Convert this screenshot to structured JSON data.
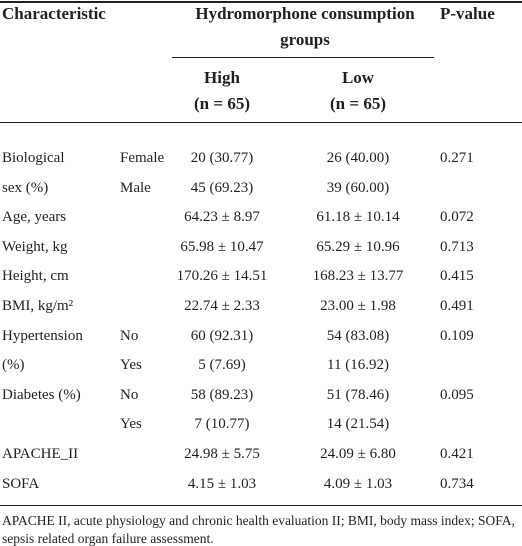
{
  "header": {
    "characteristic": "Characteristic",
    "group_title_line1": "Hydromorphone consumption",
    "group_title_line2": "groups",
    "p_value": "P-value",
    "high": "High",
    "high_n": "(n = 65)",
    "low": "Low",
    "low_n": "(n = 65)"
  },
  "table": {
    "rows": [
      {
        "label": "Biological",
        "level": "Female",
        "high": "20 (30.77)",
        "low": "26 (40.00)",
        "p": "0.271"
      },
      {
        "label": "sex (%)",
        "level": "Male",
        "high": "45 (69.23)",
        "low": "39 (60.00)"
      },
      {
        "label": "Age, years",
        "high": "64.23 ± 8.97",
        "low": "61.18 ± 10.14",
        "p": "0.072"
      },
      {
        "label": "Weight, kg",
        "high": "65.98 ± 10.47",
        "low": "65.29 ± 10.96",
        "p": "0.713"
      },
      {
        "label": "Height, cm",
        "high": "170.26 ± 14.51",
        "low": "168.23 ± 13.77",
        "p": "0.415"
      },
      {
        "label": "BMI, kg/m²",
        "high": "22.74 ± 2.33",
        "low": "23.00 ± 1.98",
        "p": "0.491"
      },
      {
        "label": "Hypertension",
        "level": "No",
        "high": "60 (92.31)",
        "low": "54 (83.08)",
        "p": "0.109"
      },
      {
        "label": "(%)",
        "level": "Yes",
        "high": "5 (7.69)",
        "low": "11 (16.92)"
      },
      {
        "label": "Diabetes (%)",
        "level": "No",
        "high": "58 (89.23)",
        "low": "51 (78.46)",
        "p": "0.095"
      },
      {
        "level": "Yes",
        "high": "7 (10.77)",
        "low": "14 (21.54)"
      },
      {
        "label": "APACHE_II",
        "high": "24.98 ± 5.75",
        "low": "24.09 ± 6.80",
        "p": "0.421"
      },
      {
        "label": "SOFA",
        "high": "4.15 ± 1.03",
        "low": "4.09 ± 1.03",
        "p": "0.734"
      }
    ]
  },
  "footnote": "APACHE II, acute physiology and chronic health evaluation II; BMI, body mass index; SOFA, sepsis related organ failure assessment."
}
